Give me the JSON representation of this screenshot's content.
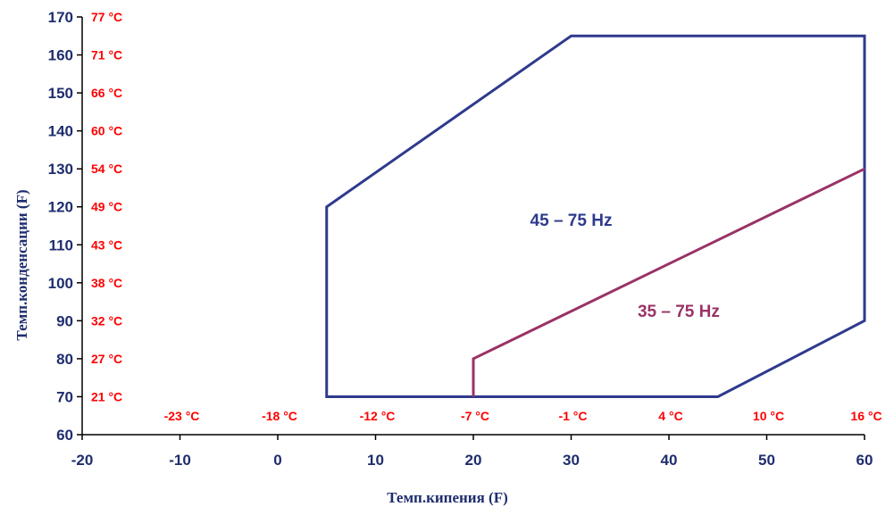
{
  "chart_data": {
    "type": "line",
    "xlabel": "Темп.кипения (F)",
    "ylabel": "Темп.конденсации (F)",
    "xlim": [
      -20,
      60
    ],
    "ylim": [
      60,
      170
    ],
    "x_ticks": [
      "-20",
      "-10",
      "0",
      "10",
      "20",
      "30",
      "40",
      "50",
      "60"
    ],
    "y_ticks": [
      "60",
      "70",
      "80",
      "90",
      "100",
      "110",
      "120",
      "130",
      "140",
      "150",
      "160",
      "170"
    ],
    "celsius_y_labels": [
      {
        "y": 70,
        "label": "21 °C"
      },
      {
        "y": 80,
        "label": "27 °C"
      },
      {
        "y": 90,
        "label": "32 °C"
      },
      {
        "y": 100,
        "label": "38 °C"
      },
      {
        "y": 110,
        "label": "43 °C"
      },
      {
        "y": 120,
        "label": "49 °C"
      },
      {
        "y": 130,
        "label": "54 °C"
      },
      {
        "y": 140,
        "label": "60 °C"
      },
      {
        "y": 150,
        "label": "66 °C"
      },
      {
        "y": 160,
        "label": "71 °C"
      },
      {
        "y": 170,
        "label": "77 °C"
      }
    ],
    "celsius_x_labels": [
      {
        "x": -10,
        "label": "-23 °C"
      },
      {
        "x": 0,
        "label": "-18 °C"
      },
      {
        "x": 10,
        "label": "-12 °C"
      },
      {
        "x": 20,
        "label": "-7 °C"
      },
      {
        "x": 30,
        "label": "-1 °C"
      },
      {
        "x": 40,
        "label": "4 °C"
      },
      {
        "x": 50,
        "label": "10 °C"
      },
      {
        "x": 60,
        "label": "16 °C"
      }
    ],
    "series": [
      {
        "name": "45 – 75 Hz",
        "color": "#2e3a8c",
        "label_at": {
          "x": 30,
          "y": 115
        },
        "closed": true,
        "points": [
          [
            5,
            70
          ],
          [
            5,
            120
          ],
          [
            30,
            165
          ],
          [
            60,
            165
          ],
          [
            60,
            90
          ],
          [
            45,
            70
          ]
        ]
      },
      {
        "name": "35 – 75 Hz",
        "color": "#993366",
        "label_at": {
          "x": 41,
          "y": 91
        },
        "closed": false,
        "points": [
          [
            20,
            70
          ],
          [
            20,
            80
          ],
          [
            60,
            130
          ]
        ]
      }
    ],
    "grid": false,
    "colors": {
      "axis": "#000000",
      "tick_text": "#1f2d6e",
      "celsius_text": "#ff0000"
    }
  }
}
